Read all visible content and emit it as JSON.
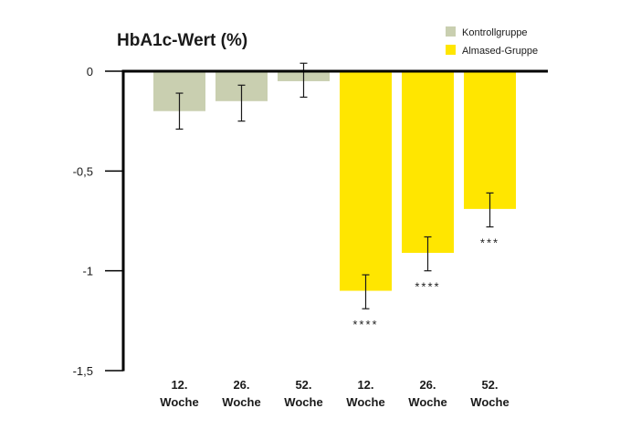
{
  "chart_data": {
    "type": "bar",
    "title": "HbA1c-Wert (%)",
    "ylim": [
      -1.5,
      0
    ],
    "yticks": [
      {
        "value": 0,
        "label": "0"
      },
      {
        "value": -0.5,
        "label": "-0,5"
      },
      {
        "value": -1,
        "label": "-1"
      },
      {
        "value": -1.5,
        "label": "-1,5"
      }
    ],
    "legend": [
      {
        "name": "Kontrollgruppe",
        "color": "#c9cfb0"
      },
      {
        "name": "Almased-Gruppe",
        "color": "#ffe600"
      }
    ],
    "legend_position": "top-right",
    "grid": false,
    "bars": [
      {
        "category": [
          "12.",
          "Woche"
        ],
        "group": "Kontrollgruppe",
        "value": -0.2,
        "err_low": -0.29,
        "err_high": -0.11,
        "significance": ""
      },
      {
        "category": [
          "26.",
          "Woche"
        ],
        "group": "Kontrollgruppe",
        "value": -0.15,
        "err_low": -0.25,
        "err_high": -0.07,
        "significance": ""
      },
      {
        "category": [
          "52.",
          "Woche"
        ],
        "group": "Kontrollgruppe",
        "value": -0.05,
        "err_low": -0.13,
        "err_high": 0.04,
        "significance": ""
      },
      {
        "category": [
          "12.",
          "Woche"
        ],
        "group": "Almased-Gruppe",
        "value": -1.1,
        "err_low": -1.19,
        "err_high": -1.02,
        "significance": "****"
      },
      {
        "category": [
          "26.",
          "Woche"
        ],
        "group": "Almased-Gruppe",
        "value": -0.91,
        "err_low": -1.0,
        "err_high": -0.83,
        "significance": "****"
      },
      {
        "category": [
          "52.",
          "Woche"
        ],
        "group": "Almased-Gruppe",
        "value": -0.69,
        "err_low": -0.78,
        "err_high": -0.61,
        "significance": "***"
      }
    ]
  }
}
